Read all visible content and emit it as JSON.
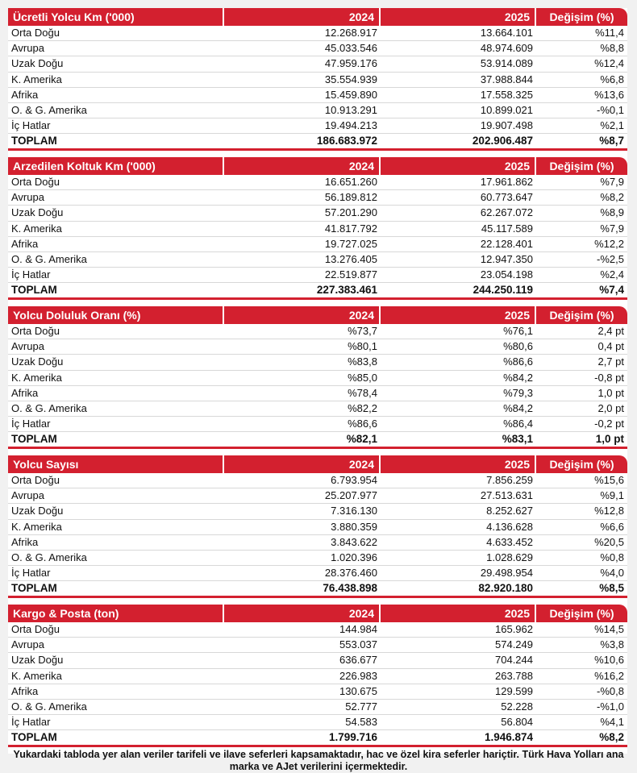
{
  "colors": {
    "header_bg": "#d3202f",
    "total_line": "#d3202f"
  },
  "sections": [
    {
      "title": "Ücretli Yolcu Km ('000)",
      "col1": "2024",
      "col2": "2025",
      "col3": "Değişim (%)",
      "rows": [
        [
          "Orta Doğu",
          "12.268.917",
          "13.664.101",
          "%11,4"
        ],
        [
          "Avrupa",
          "45.033.546",
          "48.974.609",
          "%8,8"
        ],
        [
          "Uzak Doğu",
          "47.959.176",
          "53.914.089",
          "%12,4"
        ],
        [
          "K. Amerika",
          "35.554.939",
          "37.988.844",
          "%6,8"
        ],
        [
          "Afrika",
          "15.459.890",
          "17.558.325",
          "%13,6"
        ],
        [
          "O. & G. Amerika",
          "10.913.291",
          "10.899.021",
          "-%0,1"
        ],
        [
          "İç Hatlar",
          "19.494.213",
          "19.907.498",
          "%2,1"
        ]
      ],
      "total": [
        "TOPLAM",
        "186.683.972",
        "202.906.487",
        "%8,7"
      ]
    },
    {
      "title": "Arzedilen Koltuk Km ('000)",
      "col1": "2024",
      "col2": "2025",
      "col3": "Değişim (%)",
      "rows": [
        [
          "Orta Doğu",
          "16.651.260",
          "17.961.862",
          "%7,9"
        ],
        [
          "Avrupa",
          "56.189.812",
          "60.773.647",
          "%8,2"
        ],
        [
          "Uzak Doğu",
          "57.201.290",
          "62.267.072",
          "%8,9"
        ],
        [
          "K. Amerika",
          "41.817.792",
          "45.117.589",
          "%7,9"
        ],
        [
          "Afrika",
          "19.727.025",
          "22.128.401",
          "%12,2"
        ],
        [
          "O. & G. Amerika",
          "13.276.405",
          "12.947.350",
          "-%2,5"
        ],
        [
          "İç Hatlar",
          "22.519.877",
          "23.054.198",
          "%2,4"
        ]
      ],
      "total": [
        "TOPLAM",
        "227.383.461",
        "244.250.119",
        "%7,4"
      ]
    },
    {
      "title": "Yolcu Doluluk Oranı (%)",
      "col1": "2024",
      "col2": "2025",
      "col3": "Değişim (%)",
      "rows": [
        [
          "Orta Doğu",
          "%73,7",
          "%76,1",
          "2,4 pt"
        ],
        [
          "Avrupa",
          "%80,1",
          "%80,6",
          "0,4 pt"
        ],
        [
          "Uzak Doğu",
          "%83,8",
          "%86,6",
          "2,7 pt"
        ],
        [
          "K. Amerika",
          "%85,0",
          "%84,2",
          "-0,8 pt"
        ],
        [
          "Afrika",
          "%78,4",
          "%79,3",
          "1,0 pt"
        ],
        [
          "O. & G. Amerika",
          "%82,2",
          "%84,2",
          "2,0 pt"
        ],
        [
          "İç Hatlar",
          "%86,6",
          "%86,4",
          "-0,2 pt"
        ]
      ],
      "total": [
        "TOPLAM",
        "%82,1",
        "%83,1",
        "1,0 pt"
      ]
    },
    {
      "title": "Yolcu Sayısı",
      "col1": "2024",
      "col2": "2025",
      "col3": "Değişim (%)",
      "rows": [
        [
          "Orta Doğu",
          "6.793.954",
          "7.856.259",
          "%15,6"
        ],
        [
          "Avrupa",
          "25.207.977",
          "27.513.631",
          "%9,1"
        ],
        [
          "Uzak Doğu",
          "7.316.130",
          "8.252.627",
          "%12,8"
        ],
        [
          "K. Amerika",
          "3.880.359",
          "4.136.628",
          "%6,6"
        ],
        [
          "Afrika",
          "3.843.622",
          "4.633.452",
          "%20,5"
        ],
        [
          "O. & G. Amerika",
          "1.020.396",
          "1.028.629",
          "%0,8"
        ],
        [
          "İç Hatlar",
          "28.376.460",
          "29.498.954",
          "%4,0"
        ]
      ],
      "total": [
        "TOPLAM",
        "76.438.898",
        "82.920.180",
        "%8,5"
      ]
    },
    {
      "title": "Kargo & Posta (ton)",
      "col1": "2024",
      "col2": "2025",
      "col3": "Değişim (%)",
      "rows": [
        [
          "Orta Doğu",
          "144.984",
          "165.962",
          "%14,5"
        ],
        [
          "Avrupa",
          "553.037",
          "574.249",
          "%3,8"
        ],
        [
          "Uzak Doğu",
          "636.677",
          "704.244",
          "%10,6"
        ],
        [
          "K. Amerika",
          "226.983",
          "263.788",
          "%16,2"
        ],
        [
          "Afrika",
          "130.675",
          "129.599",
          "-%0,8"
        ],
        [
          "O. & G. Amerika",
          "52.777",
          "52.228",
          "-%1,0"
        ],
        [
          "İç Hatlar",
          "54.583",
          "56.804",
          "%4,1"
        ]
      ],
      "total": [
        "TOPLAM",
        "1.799.716",
        "1.946.874",
        "%8,2"
      ]
    }
  ],
  "footnote": "Yukardaki tabloda yer alan veriler tarifeli ve ilave seferleri kapsamaktadır, hac ve özel kira seferler hariçtir. Türk Hava Yolları ana marka ve AJet verilerini içermektedir."
}
